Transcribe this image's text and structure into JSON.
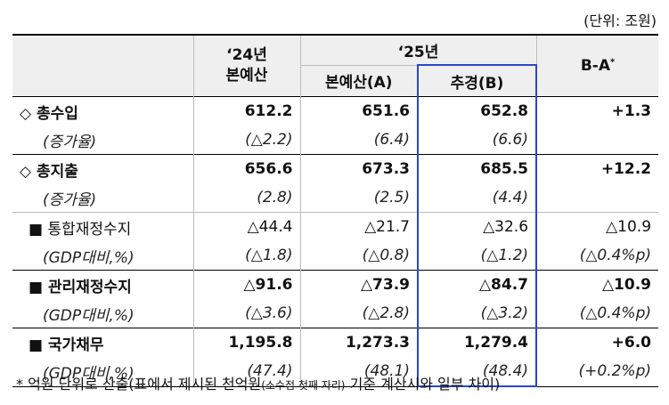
{
  "unit": "(단위: 조원)",
  "header": {
    "col_24": "‘24년\n본예산",
    "col_24_l1": "‘24년",
    "col_24_l2": "본예산",
    "col_25": "‘25년",
    "col_25_main": "본예산(A)",
    "col_25_supp": "추경(B)",
    "col_diff": "B-A",
    "col_diff_mark": "*"
  },
  "rows": [
    {
      "label": "◇  총수입",
      "v24": "612.2",
      "v25a": "651.6",
      "v25b": "652.8",
      "diff": "+1.3"
    },
    {
      "label": "(증가율)",
      "v24": "(△2.2)",
      "v25a": "(6.4)",
      "v25b": "(6.6)",
      "diff": ""
    },
    {
      "label": "◇  총지출",
      "v24": "656.6",
      "v25a": "673.3",
      "v25b": "685.5",
      "diff": "+12.2"
    },
    {
      "label": "(증가율)",
      "v24": "(2.8)",
      "v25a": "(2.5)",
      "v25b": "(4.4)",
      "diff": ""
    },
    {
      "label": "■ 통합재정수지",
      "v24": "△44.4",
      "v25a": "△21.7",
      "v25b": "△32.6",
      "diff": "△10.9"
    },
    {
      "label": "(GDP대비,%)",
      "v24": "(△1.8)",
      "v25a": "(△0.8)",
      "v25b": "(△1.2)",
      "diff": "(△0.4%p)"
    },
    {
      "label": "■ 관리재정수지",
      "v24": "△91.6",
      "v25a": "△73.9",
      "v25b": "△84.7",
      "diff": "△10.9"
    },
    {
      "label": "(GDP대비,%)",
      "v24": "(△3.6)",
      "v25a": "(△2.8)",
      "v25b": "(△3.2)",
      "diff": "(△0.4%p)"
    },
    {
      "label": "■ 국가채무",
      "v24": "1,195.8",
      "v25a": "1,273.3",
      "v25b": "1,279.4",
      "diff": "+6.0"
    },
    {
      "label": "(GDP대비,%)",
      "v24": "(47.4)",
      "v25a": "(48.1)",
      "v25b": "(48.4)",
      "diff": "(+0.2%p)"
    }
  ],
  "note": {
    "part1": "* 억원 단위로 산출(표에서 제시된 천억원",
    "part2": "(소수점 첫째 자리)",
    "part3": " 기준 계산시와 일부 차이)"
  }
}
